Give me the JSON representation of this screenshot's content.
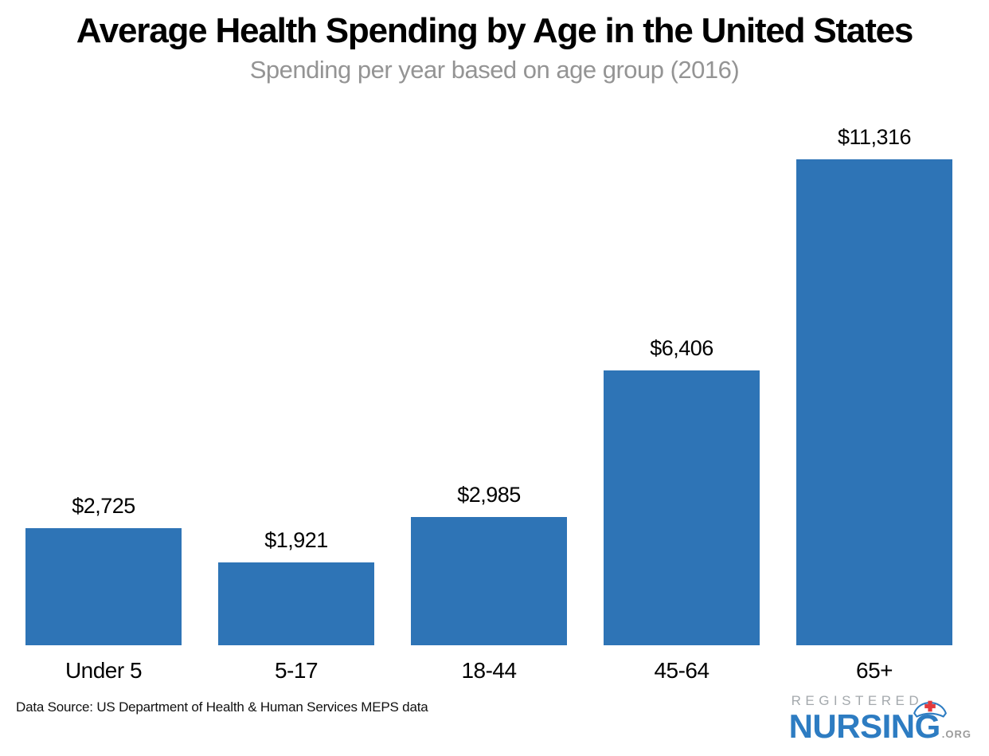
{
  "chart_data": {
    "type": "bar",
    "title": "Average Health Spending by Age in the United States",
    "subtitle": "Spending per year based on age group (2016)",
    "categories": [
      "Under 5",
      "5-17",
      "18-44",
      "45-64",
      "65+"
    ],
    "values": [
      2725,
      1921,
      2985,
      6406,
      11316
    ],
    "value_labels": [
      "$2,725",
      "$1,921",
      "$2,985",
      "$6,406",
      "$11,316"
    ],
    "xlabel": "",
    "ylabel": "",
    "ylim": [
      0,
      11316
    ],
    "grid": false,
    "legend": false,
    "bar_color": "#2E74B6"
  },
  "footer": {
    "data_source": "Data Source: US Department of Health & Human Services MEPS data",
    "logo": {
      "registered": "REGISTERED",
      "nursing": "NURSING",
      "org": ".ORG"
    }
  },
  "colors": {
    "bar_blue": "#2E74B6",
    "subtitle_gray": "#949494",
    "logo_blue": "#2D7CC2",
    "logo_gray": "#A4A9AD",
    "cap_cross_red": "#E23B3E"
  }
}
